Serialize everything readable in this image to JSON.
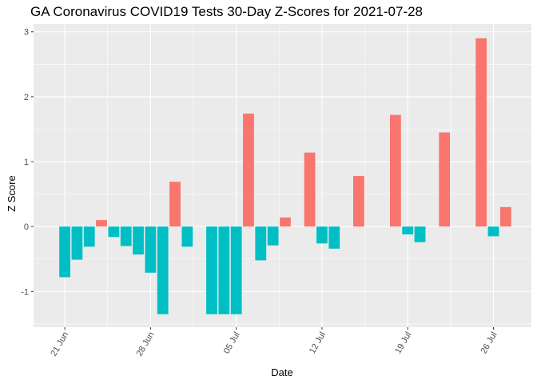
{
  "chart_data": {
    "type": "bar",
    "title": "GA Coronavirus COVID19 Tests 30-Day Z-Scores for 2021-07-28",
    "xlabel": "Date",
    "ylabel": "Z Score",
    "ylim": [
      -1.55,
      3.12
    ],
    "yticks": [
      {
        "value": -1,
        "label": "-1"
      },
      {
        "value": 0,
        "label": "0"
      },
      {
        "value": 1,
        "label": "1"
      },
      {
        "value": 2,
        "label": "2"
      },
      {
        "value": 3,
        "label": "3"
      }
    ],
    "xticks": [
      {
        "day": 0,
        "label": "21 Jun"
      },
      {
        "day": 7,
        "label": "28 Jun"
      },
      {
        "day": 14,
        "label": "05 Jul"
      },
      {
        "day": 21,
        "label": "12 Jul"
      },
      {
        "day": 28,
        "label": "19 Jul"
      },
      {
        "day": 35,
        "label": "26 Jul"
      }
    ],
    "x_start_date": "2021-06-21",
    "xlim_days": [
      -2.55,
      38.1
    ],
    "colors": {
      "positive": "#F8766D",
      "negative": "#00BFC4"
    },
    "bars": [
      {
        "date": "2021-06-21",
        "value": -0.78
      },
      {
        "date": "2021-06-22",
        "value": -0.51
      },
      {
        "date": "2021-06-23",
        "value": -0.31
      },
      {
        "date": "2021-06-24",
        "value": 0.1
      },
      {
        "date": "2021-06-25",
        "value": -0.16
      },
      {
        "date": "2021-06-26",
        "value": -0.3
      },
      {
        "date": "2021-06-27",
        "value": -0.43
      },
      {
        "date": "2021-06-28",
        "value": -0.71
      },
      {
        "date": "2021-06-29",
        "value": -1.35
      },
      {
        "date": "2021-06-30",
        "value": 0.69
      },
      {
        "date": "2021-07-01",
        "value": -0.31
      },
      {
        "date": "2021-07-03",
        "value": -1.35
      },
      {
        "date": "2021-07-04",
        "value": -1.35
      },
      {
        "date": "2021-07-05",
        "value": -1.35
      },
      {
        "date": "2021-07-06",
        "value": 1.74
      },
      {
        "date": "2021-07-07",
        "value": -0.52
      },
      {
        "date": "2021-07-08",
        "value": -0.29
      },
      {
        "date": "2021-07-09",
        "value": 0.14
      },
      {
        "date": "2021-07-11",
        "value": 1.14
      },
      {
        "date": "2021-07-12",
        "value": -0.26
      },
      {
        "date": "2021-07-13",
        "value": -0.34
      },
      {
        "date": "2021-07-15",
        "value": 0.78
      },
      {
        "date": "2021-07-18",
        "value": 1.72
      },
      {
        "date": "2021-07-19",
        "value": -0.12
      },
      {
        "date": "2021-07-20",
        "value": -0.24
      },
      {
        "date": "2021-07-22",
        "value": 1.45
      },
      {
        "date": "2021-07-25",
        "value": 2.9
      },
      {
        "date": "2021-07-26",
        "value": -0.15
      },
      {
        "date": "2021-07-27",
        "value": 0.3
      }
    ]
  }
}
